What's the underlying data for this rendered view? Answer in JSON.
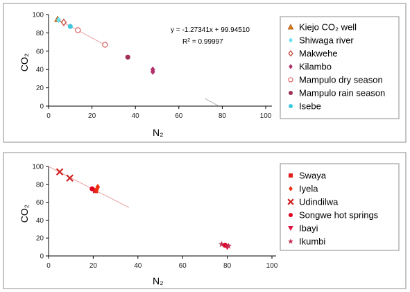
{
  "chart_data": [
    {
      "type": "scatter",
      "xlabel": "N₂",
      "ylabel": "CO₂",
      "xlim": [
        0,
        100
      ],
      "ylim": [
        0,
        100
      ],
      "xticks": [
        "0",
        "20",
        "40",
        "60",
        "80",
        "100"
      ],
      "yticks": [
        "0",
        "20",
        "40",
        "60",
        "80",
        "100"
      ],
      "legend_position": "right",
      "annotation": {
        "equation": "y = -1.27341x + 99.94510",
        "r2_label": "R",
        "r2_sup": "2",
        "r2_value": " = 0.99997"
      },
      "trendline": {
        "slope": -1.27341,
        "intercept": 99.9451,
        "x_range": [
          4,
          26
        ],
        "color": "#e8a0a0"
      },
      "extra_line": {
        "x_range": [
          72,
          78
        ],
        "color": "#b0b0b0"
      },
      "series": [
        {
          "name": "Kiejo CO₂ well",
          "marker": "triangle",
          "color": "#e07a10",
          "points": [
            [
              4.2,
              95.0
            ]
          ]
        },
        {
          "name": "Shiwaga river",
          "marker": "diamond-filled",
          "color": "#66e0f0",
          "points": [
            [
              4.6,
              94.2
            ]
          ]
        },
        {
          "name": "Makwehe",
          "marker": "diamond-open",
          "color": "#c0392b",
          "points": [
            [
              7.0,
              91.5
            ]
          ]
        },
        {
          "name": "Kilambo",
          "marker": "diamond-filled",
          "color": "#b0306a",
          "points": [
            [
              48.0,
              40.0
            ],
            [
              48.0,
              37.5
            ]
          ]
        },
        {
          "name": "Mampulo dry season",
          "marker": "circle-open",
          "color": "#e06060",
          "points": [
            [
              13.5,
              83.0
            ],
            [
              26.0,
              67.0
            ]
          ]
        },
        {
          "name": "Mampulo rain season",
          "marker": "circle-filled",
          "color": "#a0305a",
          "points": [
            [
              36.5,
              53.5
            ]
          ]
        },
        {
          "name": "Isebe",
          "marker": "circle-filled",
          "color": "#40c8e0",
          "points": [
            [
              10.0,
              87.0
            ]
          ]
        }
      ]
    },
    {
      "type": "scatter",
      "xlabel": "N₂",
      "ylabel": "CO₂",
      "xlim": [
        0,
        100
      ],
      "ylim": [
        0,
        100
      ],
      "xticks": [
        "0",
        "20",
        "40",
        "60",
        "80",
        "100"
      ],
      "yticks": [
        "0",
        "20",
        "40",
        "60",
        "80",
        "100"
      ],
      "legend_position": "right",
      "trendline": {
        "slope": -1.27341,
        "intercept": 99.9451,
        "x_range": [
          0,
          36
        ],
        "color": "#e8a0a0"
      },
      "series": [
        {
          "name": "Swaya",
          "marker": "square",
          "color": "#e02020",
          "points": [
            [
              21.0,
              73.0
            ]
          ]
        },
        {
          "name": "Iyela",
          "marker": "diamond-filled",
          "color": "#f03010",
          "points": [
            [
              22.0,
              77.0
            ],
            [
              21.5,
              74.0
            ]
          ]
        },
        {
          "name": "Udindilwa",
          "marker": "x",
          "color": "#d02020",
          "points": [
            [
              5.0,
              94.0
            ],
            [
              9.5,
              87.0
            ]
          ]
        },
        {
          "name": "Songwe hot springs",
          "marker": "circle-filled",
          "color": "#e00020",
          "points": [
            [
              19.5,
              75.0
            ],
            [
              79.0,
              12.0
            ]
          ]
        },
        {
          "name": "Ibayi",
          "marker": "triangle-down",
          "color": "#e01040",
          "points": [
            [
              80.0,
              10.0
            ]
          ]
        },
        {
          "name": "Ikumbi",
          "marker": "star",
          "color": "#c03050",
          "points": [
            [
              77.5,
              13.0
            ],
            [
              80.5,
              11.0
            ]
          ]
        }
      ]
    }
  ]
}
